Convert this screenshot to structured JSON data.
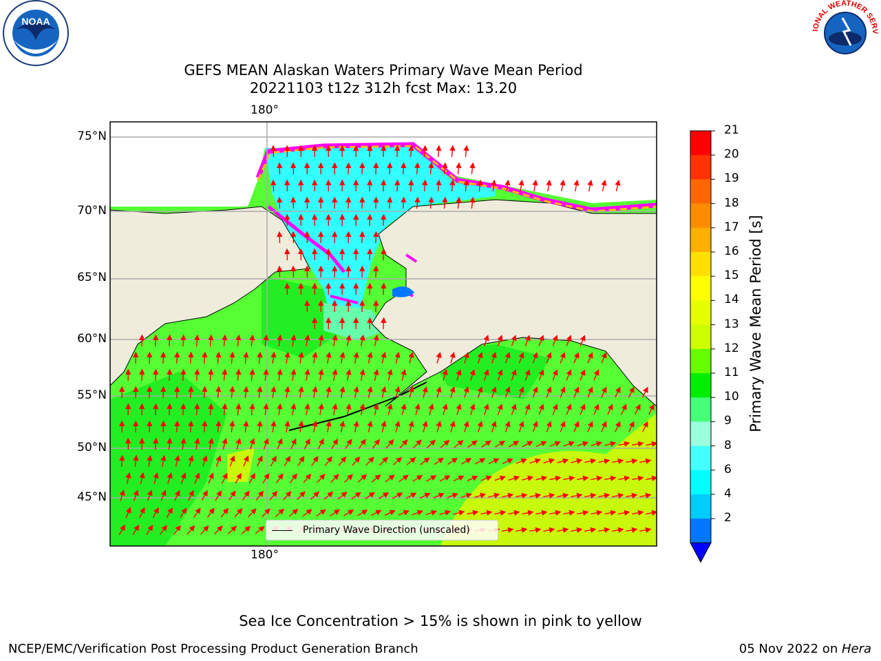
{
  "title": {
    "line1": "GEFS MEAN Alaskan Waters Primary Wave Mean Period",
    "line2": "20221103 t12z 312h fcst   Max: 13.20"
  },
  "map": {
    "lon_label": "180°",
    "lat_labels": [
      "75°N",
      "70°N",
      "65°N",
      "60°N",
      "55°N",
      "50°N",
      "45°N"
    ],
    "legend_text": "Primary Wave Direction (unscaled)",
    "arrow_color": "#ff0000",
    "land_color": "#efecdc",
    "ice_color": "#ff00ff"
  },
  "colorbar": {
    "title": "Primary Wave Mean Period [s]",
    "ticks": [
      "21",
      "20",
      "19",
      "18",
      "17",
      "16",
      "15",
      "14",
      "13",
      "12",
      "11",
      "10",
      "9",
      "8",
      "6",
      "4",
      "2"
    ],
    "colors": [
      "#ff0000",
      "#ff3300",
      "#ff6600",
      "#ff8c00",
      "#ffb000",
      "#ffe000",
      "#ffff00",
      "#e6ff00",
      "#ccff00",
      "#66ff00",
      "#00ee00",
      "#44ff77",
      "#99ffdd",
      "#44ffff",
      "#00ffff",
      "#00ccff",
      "#0077ff"
    ],
    "extend_color": "#0000ff"
  },
  "footnote": "Sea Ice Concentration > 15% is shown in pink to yellow",
  "credits": {
    "left": "NCEP/EMC/Verification Post Processing Product Generation Branch",
    "right_date": "05 Nov 2022 on ",
    "right_machine": "Hera"
  },
  "logos": {
    "noaa": "NOAA",
    "nws": "NATIONAL WEATHER SERVICE"
  }
}
